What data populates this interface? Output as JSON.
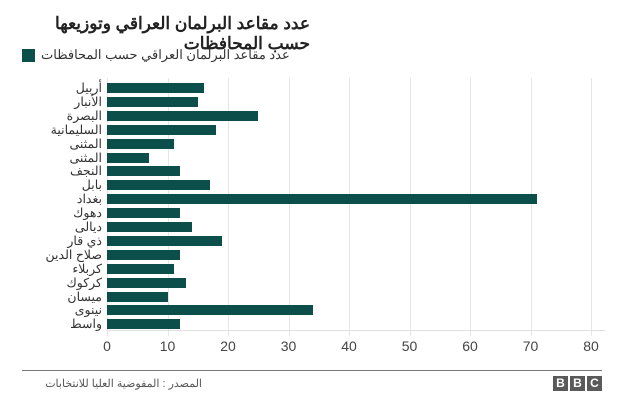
{
  "title": "عدد مقاعد البرلمان العراقي وتوزيعها حسب المحافظات",
  "legend": {
    "label": "عدد مقاعد البرلمان العراقي حسب المحافظات",
    "color": "#0c4f4a"
  },
  "footer": {
    "source": "المصدر : المفوضية العليا للانتخابات",
    "logo": [
      "B",
      "B",
      "C"
    ]
  },
  "axis": {
    "ticks": [
      "0",
      "10",
      "20",
      "30",
      "40",
      "50",
      "60",
      "70",
      "80"
    ]
  },
  "chart_data": {
    "type": "bar",
    "orientation": "horizontal",
    "title": "عدد مقاعد البرلمان العراقي وتوزيعها حسب المحافظات",
    "legend": [
      "عدد مقاعد البرلمان العراقي حسب المحافظات"
    ],
    "legend_position": "top",
    "xlabel": "",
    "ylabel": "",
    "xlim": [
      0,
      80
    ],
    "xticks": [
      0,
      10,
      20,
      30,
      40,
      50,
      60,
      70,
      80
    ],
    "grid": true,
    "color": "#0c4f4a",
    "categories": [
      "أربيل",
      "الأنبار",
      "البصرة",
      "السليمانية",
      "المثنى",
      "المثنى",
      "النجف",
      "بابل",
      "بغداد",
      "دهوك",
      "ديالى",
      "ذي قار",
      "صلاح الدين",
      "كربلاء",
      "كركوك",
      "ميسان",
      "نينوى",
      "واسط"
    ],
    "values": [
      16,
      15,
      25,
      18,
      11,
      7,
      12,
      17,
      71,
      12,
      14,
      19,
      12,
      11,
      13,
      10,
      34,
      12
    ],
    "source": "المصدر : المفوضية العليا للانتخابات"
  }
}
